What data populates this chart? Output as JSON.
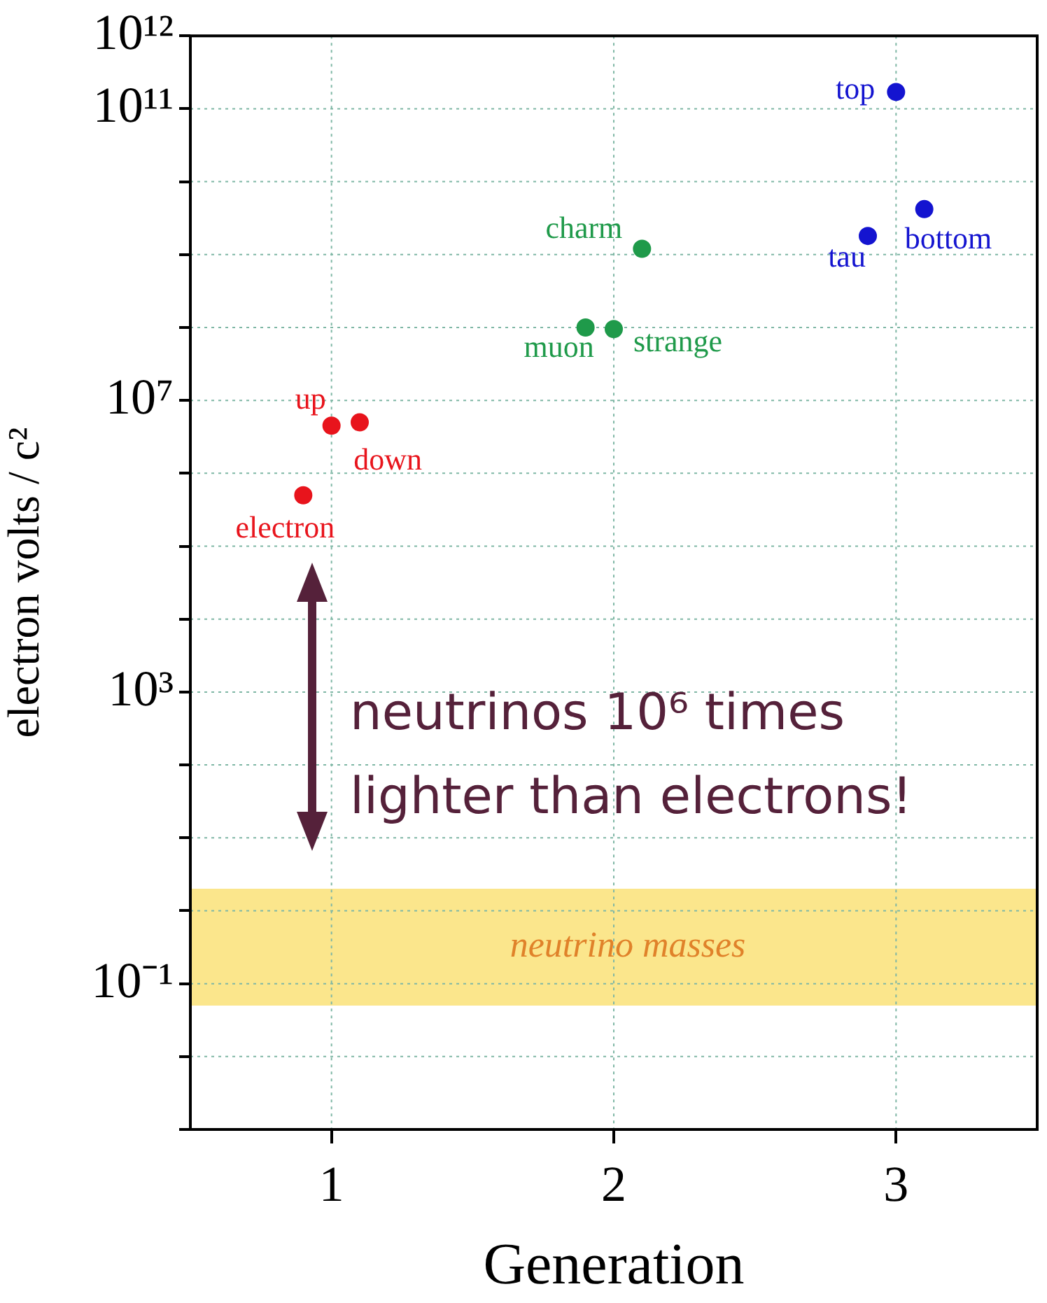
{
  "chart_data": {
    "type": "scatter",
    "xlabel": "Generation",
    "ylabel": "electron volts / c²",
    "xlim": [
      0.5,
      3.5
    ],
    "xticks": [
      1,
      2,
      3
    ],
    "ylim": [
      0.001,
      1000000000000.0
    ],
    "log": "y",
    "yticks": [
      {
        "value": 0.001,
        "label": null
      },
      {
        "value": 0.01,
        "label": null
      },
      {
        "value": 0.1,
        "label": "10⁻¹"
      },
      {
        "value": 1,
        "label": null
      },
      {
        "value": 10,
        "label": null
      },
      {
        "value": 100,
        "label": null
      },
      {
        "value": 1000,
        "label": "10³"
      },
      {
        "value": 10000,
        "label": null
      },
      {
        "value": 100000,
        "label": null
      },
      {
        "value": 1000000,
        "label": null
      },
      {
        "value": 10000000,
        "label": "10⁷"
      },
      {
        "value": 100000000,
        "label": null
      },
      {
        "value": 1000000000,
        "label": null
      },
      {
        "value": 10000000000,
        "label": null
      },
      {
        "value": 100000000000,
        "label": "10¹¹"
      },
      {
        "value": 1000000000000,
        "label": "10¹²"
      }
    ],
    "grid": true,
    "legend": false,
    "marker": "circle",
    "series": [
      {
        "color": "#e8141c",
        "x": [
          0.9,
          1,
          1.1
        ],
        "values": [
          500000,
          4500000,
          5000000
        ]
      },
      {
        "color": "#1f9a4a",
        "x": [
          1.9,
          2,
          2.1
        ],
        "values": [
          100000000,
          95000000,
          1200000000
        ]
      },
      {
        "color": "#1414d0",
        "x": [
          2.9,
          3,
          3.1
        ],
        "values": [
          1800000000,
          170000000000,
          4200000000
        ]
      }
    ],
    "bands": [
      {
        "axis": "y",
        "from": 0.05,
        "to": 2,
        "label": "neutrino masses",
        "color": "#fbe68c"
      }
    ],
    "annotations": [
      {
        "text": "electron",
        "x": 0.9,
        "y": 500000
      },
      {
        "text": "up",
        "x": 1,
        "y": 4500000
      },
      {
        "text": "down",
        "x": 1.1,
        "y": 5000000
      },
      {
        "text": "muon",
        "x": 1.9,
        "y": 100000000
      },
      {
        "text": "strange",
        "x": 2,
        "y": 95000000
      },
      {
        "text": "charm",
        "x": 2.1,
        "y": 1200000000
      },
      {
        "text": "tau",
        "x": 2.9,
        "y": 1800000000
      },
      {
        "text": "bottom",
        "x": 3.1,
        "y": 4200000000
      },
      {
        "text": "top",
        "x": 3,
        "y": 170000000000
      },
      "neutrinos 10⁶ times\nlighter than electrons!"
    ]
  }
}
